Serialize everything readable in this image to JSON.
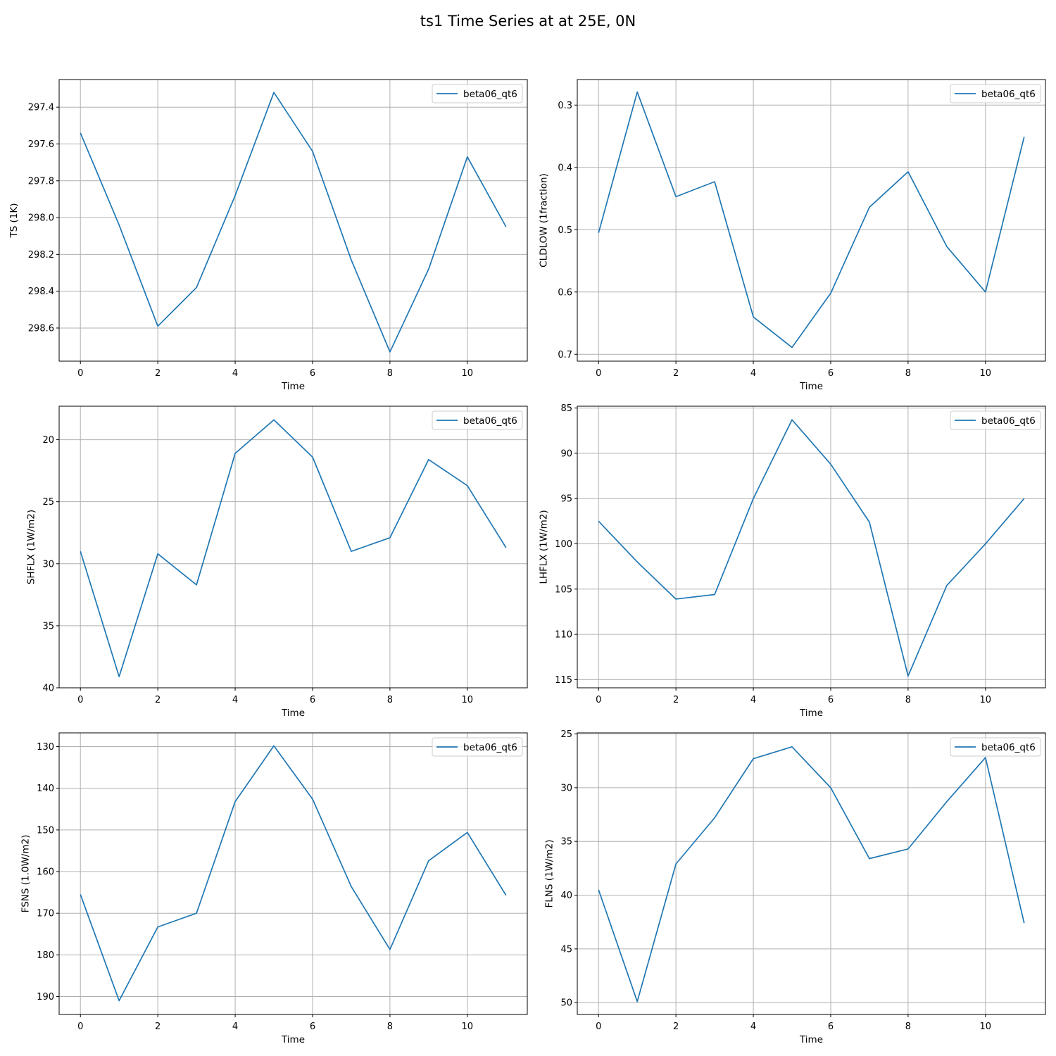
{
  "figure": {
    "title": "ts1 Time Series at at 25E, 0N"
  },
  "colors": {
    "series": "#1f77b4",
    "grid": "#b0b0b0",
    "background": "#ffffff"
  },
  "chart_data": [
    {
      "type": "line",
      "xlabel": "Time",
      "ylabel": "TS (1K)",
      "xlim": [
        -0.55,
        11.55
      ],
      "ylim": [
        298.78,
        297.25
      ],
      "y_inverted": true,
      "xticks": [
        0,
        2,
        4,
        6,
        8,
        10
      ],
      "xtick_labels": [
        "0",
        "2",
        "4",
        "6",
        "8",
        "10"
      ],
      "yticks": [
        297.4,
        297.6,
        297.8,
        298.0,
        298.2,
        298.4,
        298.6
      ],
      "ytick_labels": [
        "297.4",
        "297.6",
        "297.8",
        "298.0",
        "298.2",
        "298.4",
        "298.6"
      ],
      "grid": true,
      "legend_position": "top-right",
      "series": [
        {
          "name": "beta06_qt6",
          "x": [
            0,
            1,
            2,
            3,
            4,
            5,
            6,
            7,
            8,
            9,
            10,
            11
          ],
          "values": [
            297.54,
            298.04,
            298.59,
            298.38,
            297.88,
            297.32,
            297.64,
            298.23,
            298.73,
            298.28,
            297.67,
            298.05
          ]
        }
      ]
    },
    {
      "type": "line",
      "xlabel": "Time",
      "ylabel": "CLDLOW (1fraction)",
      "xlim": [
        -0.55,
        11.55
      ],
      "ylim": [
        0.711,
        0.259
      ],
      "y_inverted": true,
      "xticks": [
        0,
        2,
        4,
        6,
        8,
        10
      ],
      "xtick_labels": [
        "0",
        "2",
        "4",
        "6",
        "8",
        "10"
      ],
      "yticks": [
        0.3,
        0.4,
        0.5,
        0.6,
        0.7
      ],
      "ytick_labels": [
        "0.3",
        "0.4",
        "0.5",
        "0.6",
        "0.7"
      ],
      "grid": true,
      "legend_position": "top-right",
      "series": [
        {
          "name": "beta06_qt6",
          "x": [
            0,
            1,
            2,
            3,
            4,
            5,
            6,
            7,
            8,
            9,
            10,
            11
          ],
          "values": [
            0.505,
            0.279,
            0.447,
            0.423,
            0.64,
            0.689,
            0.602,
            0.464,
            0.407,
            0.527,
            0.6,
            0.351
          ]
        }
      ]
    },
    {
      "type": "line",
      "xlabel": "Time",
      "ylabel": "SHFLX (1W/m2)",
      "xlim": [
        -0.55,
        11.55
      ],
      "ylim": [
        40.0,
        17.3
      ],
      "y_inverted": true,
      "xticks": [
        0,
        2,
        4,
        6,
        8,
        10
      ],
      "xtick_labels": [
        "0",
        "2",
        "4",
        "6",
        "8",
        "10"
      ],
      "yticks": [
        20,
        25,
        30,
        35,
        40
      ],
      "ytick_labels": [
        "20",
        "25",
        "30",
        "35",
        "40"
      ],
      "grid": true,
      "legend_position": "top-right",
      "series": [
        {
          "name": "beta06_qt6",
          "x": [
            0,
            1,
            2,
            3,
            4,
            5,
            6,
            7,
            8,
            9,
            10,
            11
          ],
          "values": [
            29.0,
            39.1,
            29.2,
            31.7,
            21.1,
            18.4,
            21.4,
            29.0,
            27.9,
            21.6,
            23.7,
            28.7
          ]
        }
      ]
    },
    {
      "type": "line",
      "xlabel": "Time",
      "ylabel": "LHFLX (1W/m2)",
      "xlim": [
        -0.55,
        11.55
      ],
      "ylim": [
        115.9,
        84.8
      ],
      "y_inverted": true,
      "xticks": [
        0,
        2,
        4,
        6,
        8,
        10
      ],
      "xtick_labels": [
        "0",
        "2",
        "4",
        "6",
        "8",
        "10"
      ],
      "yticks": [
        85,
        90,
        95,
        100,
        105,
        110,
        115
      ],
      "ytick_labels": [
        "85",
        "90",
        "95",
        "100",
        "105",
        "110",
        "115"
      ],
      "grid": true,
      "legend_position": "top-right",
      "series": [
        {
          "name": "beta06_qt6",
          "x": [
            0,
            1,
            2,
            3,
            4,
            5,
            6,
            7,
            8,
            9,
            10,
            11
          ],
          "values": [
            97.5,
            102.0,
            106.1,
            105.6,
            95.0,
            86.3,
            91.2,
            97.6,
            114.6,
            104.6,
            100.0,
            95.0
          ]
        }
      ]
    },
    {
      "type": "line",
      "xlabel": "Time",
      "ylabel": "FSNS (1.0W/m2)",
      "xlim": [
        -0.55,
        11.55
      ],
      "ylim": [
        194.3,
        126.7
      ],
      "y_inverted": true,
      "xticks": [
        0,
        2,
        4,
        6,
        8,
        10
      ],
      "xtick_labels": [
        "0",
        "2",
        "4",
        "6",
        "8",
        "10"
      ],
      "yticks": [
        130,
        140,
        150,
        160,
        170,
        180,
        190
      ],
      "ytick_labels": [
        "130",
        "140",
        "150",
        "160",
        "170",
        "180",
        "190"
      ],
      "grid": true,
      "legend_position": "top-right",
      "series": [
        {
          "name": "beta06_qt6",
          "x": [
            0,
            1,
            2,
            3,
            4,
            5,
            6,
            7,
            8,
            9,
            10,
            11
          ],
          "values": [
            165.5,
            191.0,
            173.3,
            170.0,
            143.2,
            129.8,
            142.6,
            163.6,
            178.7,
            157.4,
            150.6,
            165.7
          ]
        }
      ]
    },
    {
      "type": "line",
      "xlabel": "Time",
      "ylabel": "FLNS (1W/m2)",
      "xlim": [
        -0.55,
        11.55
      ],
      "ylim": [
        51.1,
        24.9
      ],
      "y_inverted": true,
      "xticks": [
        0,
        2,
        4,
        6,
        8,
        10
      ],
      "xtick_labels": [
        "0",
        "2",
        "4",
        "6",
        "8",
        "10"
      ],
      "yticks": [
        25,
        30,
        35,
        40,
        45,
        50
      ],
      "ytick_labels": [
        "25",
        "30",
        "35",
        "40",
        "45",
        "50"
      ],
      "grid": true,
      "legend_position": "top-right",
      "series": [
        {
          "name": "beta06_qt6",
          "x": [
            0,
            1,
            2,
            3,
            4,
            5,
            6,
            7,
            8,
            9,
            10,
            11
          ],
          "values": [
            39.5,
            49.9,
            37.1,
            32.8,
            27.3,
            26.2,
            30.0,
            36.6,
            35.7,
            31.3,
            27.2,
            42.6
          ]
        }
      ]
    }
  ]
}
